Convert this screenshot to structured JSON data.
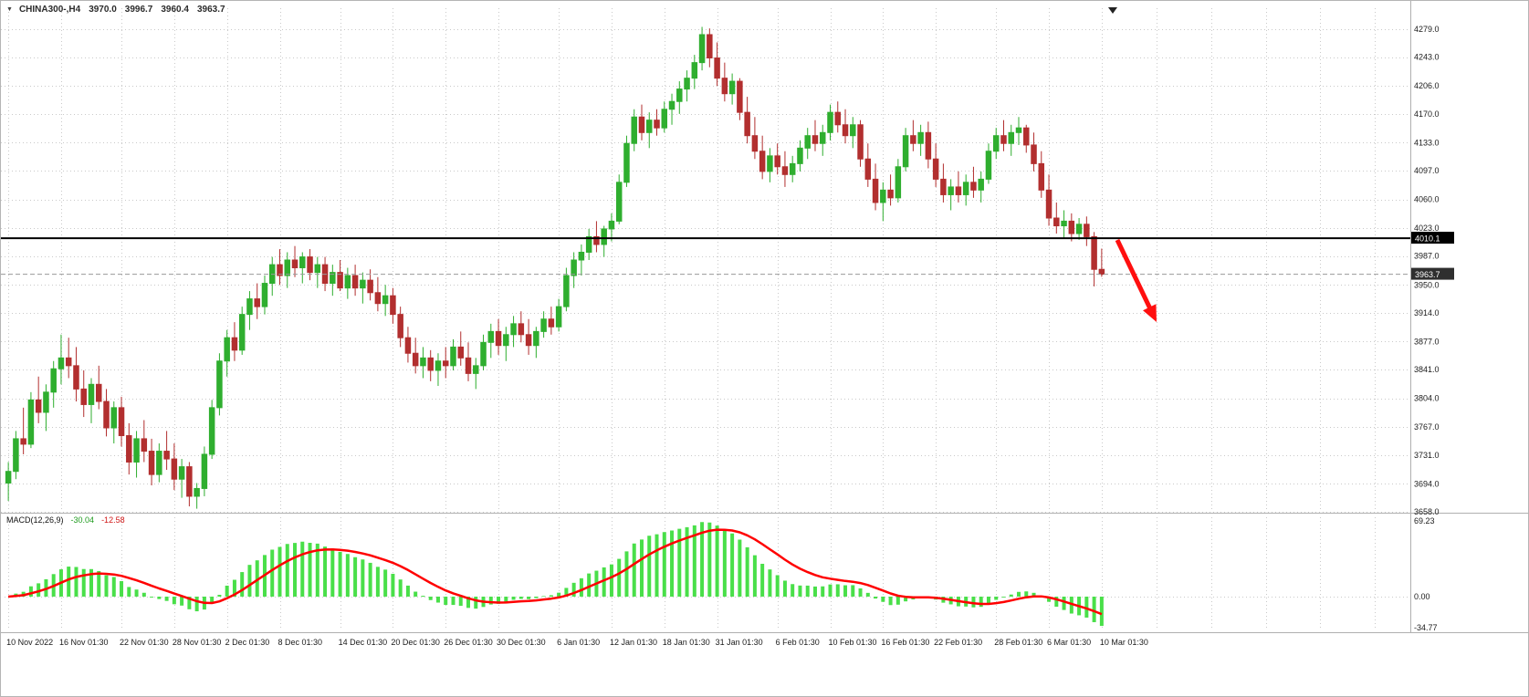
{
  "window": {
    "title": "CHINA300-,H4",
    "ohlc": {
      "open": "3970.0",
      "high": "3996.7",
      "low": "3960.4",
      "close": "3963.7"
    }
  },
  "icons": {
    "symbol_dropdown": "▼"
  },
  "colors": {
    "bull": "#2fae2f",
    "bear": "#b22f2f",
    "macd_hist": "#49df49",
    "macd_signal": "#ff0000",
    "grid": "#c9c9c9",
    "axis_text": "#1a1a1a",
    "hline": "#000000",
    "hline_label_bg": "#000000",
    "bid_line": "#9a9a9a",
    "bid_label_bg": "#2f2f2f",
    "label_text": "#ffffff",
    "arrow": "#ff0f0f",
    "pane_border": "#b0b0b0",
    "shift_marker": "#222222"
  },
  "chart_data": [
    {
      "type": "candlestick",
      "symbol": "CHINA300-",
      "timeframe": "H4",
      "grid": true,
      "ylim": [
        3658.0,
        4279.0
      ],
      "y_ticks": [
        "4279.0",
        "4243.0",
        "4206.0",
        "4170.0",
        "4133.0",
        "4097.0",
        "4060.0",
        "4023.0",
        "3987.0",
        "3950.0",
        "3914.0",
        "3877.0",
        "3841.0",
        "3804.0",
        "3767.0",
        "3731.0",
        "3694.0",
        "3658.0"
      ],
      "x_ticks": [
        {
          "label": "10 Nov 2022",
          "candle": 0
        },
        {
          "label": "16 Nov 01:30",
          "candle": 7
        },
        {
          "label": "22 Nov 01:30",
          "candle": 15
        },
        {
          "label": "28 Nov 01:30",
          "candle": 22
        },
        {
          "label": "2 Dec 01:30",
          "candle": 29
        },
        {
          "label": "8 Dec 01:30",
          "candle": 36
        },
        {
          "label": "14 Dec 01:30",
          "candle": 44
        },
        {
          "label": "20 Dec 01:30",
          "candle": 51
        },
        {
          "label": "26 Dec 01:30",
          "candle": 58
        },
        {
          "label": "30 Dec 01:30",
          "candle": 65
        },
        {
          "label": "6 Jan 01:30",
          "candle": 73
        },
        {
          "label": "12 Jan 01:30",
          "candle": 80
        },
        {
          "label": "18 Jan 01:30",
          "candle": 87
        },
        {
          "label": "31 Jan 01:30",
          "candle": 94
        },
        {
          "label": "6 Feb 01:30",
          "candle": 102
        },
        {
          "label": "10 Feb 01:30",
          "candle": 109
        },
        {
          "label": "16 Feb 01:30",
          "candle": 116
        },
        {
          "label": "22 Feb 01:30",
          "candle": 123
        },
        {
          "label": "28 Feb 01:30",
          "candle": 131
        },
        {
          "label": "6 Mar 01:30",
          "candle": 138
        },
        {
          "label": "10 Mar 01:30",
          "candle": 145
        }
      ],
      "candles": [
        [
          3695,
          3722,
          3672,
          3710
        ],
        [
          3710,
          3762,
          3700,
          3752
        ],
        [
          3752,
          3792,
          3732,
          3745
        ],
        [
          3745,
          3812,
          3740,
          3802
        ],
        [
          3802,
          3832,
          3772,
          3786
        ],
        [
          3786,
          3822,
          3762,
          3812
        ],
        [
          3812,
          3852,
          3792,
          3842
        ],
        [
          3842,
          3886,
          3822,
          3856
        ],
        [
          3856,
          3882,
          3830,
          3846
        ],
        [
          3846,
          3870,
          3800,
          3816
        ],
        [
          3816,
          3840,
          3780,
          3796
        ],
        [
          3796,
          3830,
          3772,
          3822
        ],
        [
          3822,
          3846,
          3790,
          3800
        ],
        [
          3800,
          3816,
          3755,
          3766
        ],
        [
          3766,
          3800,
          3746,
          3792
        ],
        [
          3792,
          3806,
          3742,
          3756
        ],
        [
          3756,
          3772,
          3706,
          3722
        ],
        [
          3722,
          3762,
          3702,
          3752
        ],
        [
          3752,
          3776,
          3722,
          3736
        ],
        [
          3736,
          3752,
          3692,
          3706
        ],
        [
          3706,
          3746,
          3696,
          3736
        ],
        [
          3736,
          3762,
          3712,
          3726
        ],
        [
          3726,
          3746,
          3686,
          3700
        ],
        [
          3700,
          3726,
          3676,
          3716
        ],
        [
          3716,
          3722,
          3665,
          3678
        ],
        [
          3678,
          3695,
          3662,
          3688
        ],
        [
          3688,
          3742,
          3678,
          3732
        ],
        [
          3732,
          3802,
          3726,
          3792
        ],
        [
          3792,
          3862,
          3782,
          3852
        ],
        [
          3852,
          3892,
          3832,
          3882
        ],
        [
          3882,
          3902,
          3852,
          3866
        ],
        [
          3866,
          3922,
          3860,
          3912
        ],
        [
          3912,
          3942,
          3892,
          3932
        ],
        [
          3932,
          3952,
          3906,
          3922
        ],
        [
          3922,
          3962,
          3912,
          3952
        ],
        [
          3952,
          3986,
          3936,
          3976
        ],
        [
          3976,
          3996,
          3950,
          3962
        ],
        [
          3962,
          3992,
          3946,
          3982
        ],
        [
          3982,
          4000,
          3960,
          3972
        ],
        [
          3972,
          3992,
          3952,
          3986
        ],
        [
          3986,
          3996,
          3956,
          3966
        ],
        [
          3966,
          3986,
          3946,
          3976
        ],
        [
          3976,
          3986,
          3942,
          3952
        ],
        [
          3952,
          3976,
          3936,
          3966
        ],
        [
          3966,
          3982,
          3942,
          3946
        ],
        [
          3946,
          3972,
          3932,
          3962
        ],
        [
          3962,
          3976,
          3936,
          3946
        ],
        [
          3946,
          3966,
          3926,
          3956
        ],
        [
          3956,
          3970,
          3930,
          3940
        ],
        [
          3940,
          3960,
          3916,
          3926
        ],
        [
          3926,
          3950,
          3910,
          3936
        ],
        [
          3936,
          3946,
          3900,
          3912
        ],
        [
          3912,
          3922,
          3870,
          3882
        ],
        [
          3882,
          3896,
          3850,
          3862
        ],
        [
          3862,
          3882,
          3836,
          3846
        ],
        [
          3846,
          3870,
          3830,
          3856
        ],
        [
          3856,
          3866,
          3826,
          3840
        ],
        [
          3840,
          3862,
          3820,
          3852
        ],
        [
          3852,
          3870,
          3830,
          3846
        ],
        [
          3846,
          3880,
          3840,
          3870
        ],
        [
          3870,
          3890,
          3846,
          3856
        ],
        [
          3856,
          3876,
          3826,
          3836
        ],
        [
          3836,
          3856,
          3816,
          3846
        ],
        [
          3846,
          3886,
          3840,
          3876
        ],
        [
          3876,
          3900,
          3856,
          3890
        ],
        [
          3890,
          3906,
          3860,
          3872
        ],
        [
          3872,
          3896,
          3852,
          3886
        ],
        [
          3886,
          3910,
          3870,
          3900
        ],
        [
          3900,
          3916,
          3876,
          3886
        ],
        [
          3886,
          3906,
          3860,
          3872
        ],
        [
          3872,
          3896,
          3856,
          3890
        ],
        [
          3890,
          3916,
          3882,
          3906
        ],
        [
          3906,
          3922,
          3886,
          3896
        ],
        [
          3896,
          3932,
          3890,
          3922
        ],
        [
          3922,
          3972,
          3916,
          3962
        ],
        [
          3962,
          3992,
          3946,
          3982
        ],
        [
          3982,
          4002,
          3962,
          3992
        ],
        [
          3992,
          4022,
          3982,
          4012
        ],
        [
          4012,
          4032,
          3992,
          4002
        ],
        [
          4002,
          4026,
          3986,
          4022
        ],
        [
          4022,
          4042,
          4006,
          4032
        ],
        [
          4032,
          4092,
          4028,
          4082
        ],
        [
          4082,
          4142,
          4076,
          4132
        ],
        [
          4132,
          4176,
          4122,
          4166
        ],
        [
          4166,
          4182,
          4136,
          4146
        ],
        [
          4146,
          4172,
          4126,
          4162
        ],
        [
          4162,
          4176,
          4142,
          4152
        ],
        [
          4152,
          4186,
          4146,
          4176
        ],
        [
          4176,
          4196,
          4156,
          4186
        ],
        [
          4186,
          4212,
          4170,
          4202
        ],
        [
          4202,
          4226,
          4186,
          4216
        ],
        [
          4216,
          4246,
          4202,
          4236
        ],
        [
          4236,
          4282,
          4226,
          4272
        ],
        [
          4272,
          4280,
          4230,
          4242
        ],
        [
          4242,
          4262,
          4206,
          4216
        ],
        [
          4216,
          4236,
          4186,
          4196
        ],
        [
          4196,
          4222,
          4182,
          4212
        ],
        [
          4212,
          4216,
          4162,
          4172
        ],
        [
          4172,
          4192,
          4132,
          4142
        ],
        [
          4142,
          4166,
          4112,
          4122
        ],
        [
          4122,
          4142,
          4086,
          4096
        ],
        [
          4096,
          4126,
          4082,
          4116
        ],
        [
          4116,
          4132,
          4092,
          4102
        ],
        [
          4102,
          4122,
          4076,
          4092
        ],
        [
          4092,
          4116,
          4082,
          4106
        ],
        [
          4106,
          4136,
          4096,
          4126
        ],
        [
          4126,
          4152,
          4112,
          4142
        ],
        [
          4142,
          4162,
          4122,
          4132
        ],
        [
          4132,
          4156,
          4116,
          4146
        ],
        [
          4146,
          4182,
          4136,
          4172
        ],
        [
          4172,
          4186,
          4146,
          4156
        ],
        [
          4156,
          4176,
          4132,
          4142
        ],
        [
          4142,
          4166,
          4126,
          4156
        ],
        [
          4156,
          4162,
          4102,
          4112
        ],
        [
          4112,
          4132,
          4076,
          4086
        ],
        [
          4086,
          4106,
          4046,
          4056
        ],
        [
          4056,
          4082,
          4032,
          4072
        ],
        [
          4072,
          4092,
          4052,
          4062
        ],
        [
          4062,
          4112,
          4056,
          4102
        ],
        [
          4102,
          4152,
          4096,
          4142
        ],
        [
          4142,
          4162,
          4122,
          4132
        ],
        [
          4132,
          4156,
          4116,
          4146
        ],
        [
          4146,
          4160,
          4100,
          4112
        ],
        [
          4112,
          4132,
          4076,
          4086
        ],
        [
          4086,
          4106,
          4056,
          4066
        ],
        [
          4066,
          4086,
          4046,
          4076
        ],
        [
          4076,
          4096,
          4056,
          4066
        ],
        [
          4066,
          4092,
          4052,
          4082
        ],
        [
          4082,
          4102,
          4062,
          4072
        ],
        [
          4072,
          4096,
          4056,
          4086
        ],
        [
          4086,
          4132,
          4080,
          4122
        ],
        [
          4122,
          4152,
          4112,
          4142
        ],
        [
          4142,
          4162,
          4122,
          4132
        ],
        [
          4132,
          4156,
          4116,
          4146
        ],
        [
          4146,
          4166,
          4130,
          4152
        ],
        [
          4152,
          4156,
          4120,
          4130
        ],
        [
          4130,
          4146,
          4096,
          4106
        ],
        [
          4106,
          4122,
          4062,
          4072
        ],
        [
          4072,
          4092,
          4026,
          4036
        ],
        [
          4036,
          4056,
          4016,
          4026
        ],
        [
          4026,
          4046,
          4010,
          4032
        ],
        [
          4032,
          4042,
          4006,
          4016
        ],
        [
          4016,
          4036,
          4008,
          4028
        ],
        [
          4028,
          4038,
          4000,
          4012
        ],
        [
          4012,
          4018,
          3948,
          3970
        ],
        [
          3970,
          3996.7,
          3960.4,
          3963.7
        ]
      ],
      "annotations": {
        "hline": {
          "price": 4010.1,
          "label": "4010.1"
        },
        "bid_line": {
          "price": 3963.7,
          "label": "3963.7",
          "style": "dashed"
        },
        "arrow": {
          "from": [
            1223,
            262
          ],
          "to": [
            1266,
            352
          ],
          "direction": "down-right"
        }
      }
    },
    {
      "type": "bar",
      "name": "MACD(12,26,9)",
      "params": [
        12,
        26,
        9
      ],
      "value_main": "-30.04",
      "value_signal": "-12.58",
      "axis_labels": [
        "69.23",
        "0.00",
        "-34.77"
      ],
      "ylim": [
        -34.77,
        69.23
      ],
      "derivation": "histogram = EMA(12)-EMA(26) of closes; signal = EMA(9) of histogram"
    }
  ]
}
